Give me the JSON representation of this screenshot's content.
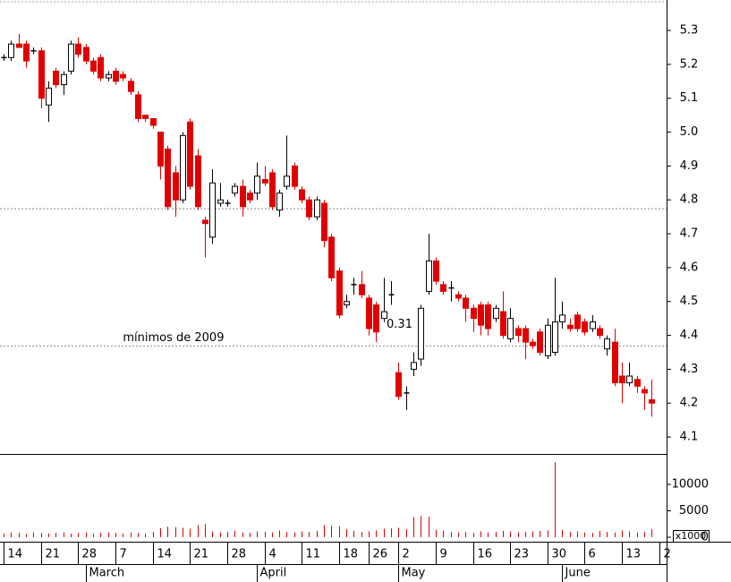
{
  "chart_data": {
    "type": "candlestick",
    "up_color": "#ffffff",
    "down_color": "#e00000",
    "doji_color": "#000000",
    "xlim": [
      -0.5,
      89
    ],
    "ylim": [
      4.05,
      5.39
    ],
    "yticks": [
      4.1,
      4.2,
      4.3,
      4.4,
      4.5,
      4.6,
      4.7,
      4.8,
      4.9,
      {
        "value": 5,
        "label": "5.0"
      },
      5.1,
      5.2,
      5.3
    ],
    "xticks": [
      {
        "value": 0,
        "label": "14"
      },
      {
        "value": 5,
        "label": "21"
      },
      {
        "value": 10,
        "label": "28"
      },
      {
        "value": 15,
        "label": "7"
      },
      {
        "value": 20,
        "label": "14"
      },
      {
        "value": 25,
        "label": "21"
      },
      {
        "value": 30,
        "label": "28"
      },
      {
        "value": 35,
        "label": "4"
      },
      {
        "value": 40,
        "label": "11"
      },
      {
        "value": 45,
        "label": "18"
      },
      {
        "value": 49,
        "label": "26"
      },
      {
        "value": 53,
        "label": "2"
      },
      {
        "value": 58,
        "label": "9"
      },
      {
        "value": 63,
        "label": "16"
      },
      {
        "value": 68,
        "label": "23"
      },
      {
        "value": 73,
        "label": "30"
      },
      {
        "value": 78,
        "label": "6"
      },
      {
        "value": 83,
        "label": "13"
      },
      {
        "value": 88,
        "label": "2"
      }
    ],
    "months": [
      {
        "value": 11,
        "label": "March"
      },
      {
        "value": 34,
        "label": "April"
      },
      {
        "value": 53,
        "label": "May"
      },
      {
        "value": 75,
        "label": "June"
      }
    ],
    "hlines": [
      {
        "value": 4.774,
        "color": "#888888"
      },
      {
        "value": 4.368,
        "color": "#888888"
      }
    ],
    "annotations": [
      {
        "text": "mínimos de 2009",
        "x": 16,
        "y": 4.392,
        "color": "#666666"
      },
      {
        "text": "0.31",
        "x": 51.4,
        "y": 4.432,
        "color": "#3399cc"
      }
    ],
    "open": [
      5.22,
      5.22,
      5.26,
      5.26,
      5.24,
      5.24,
      5.08,
      5.18,
      5.14,
      5.18,
      5.26,
      5.25,
      5.21,
      5.22,
      5.16,
      5.18,
      5.17,
      5.15,
      5.11,
      5.05,
      5.04,
      5.0,
      4.95,
      4.88,
      4.8,
      5.03,
      4.93,
      4.74,
      4.69,
      4.79,
      4.79,
      4.82,
      4.84,
      4.82,
      4.82,
      4.86,
      4.88,
      4.77,
      4.84,
      4.9,
      4.83,
      4.8,
      4.75,
      4.79,
      4.69,
      4.59,
      4.49,
      4.55,
      4.55,
      4.51,
      4.49,
      4.45,
      4.52,
      4.29,
      4.23,
      4.3,
      4.33,
      4.53,
      4.62,
      4.55,
      4.54,
      4.52,
      4.51,
      4.48,
      4.49,
      4.49,
      4.45,
      4.47,
      4.39,
      4.42,
      4.42,
      4.38,
      4.41,
      4.34,
      4.35,
      4.44,
      4.43,
      4.46,
      4.44,
      4.42,
      4.42,
      4.36,
      4.38,
      4.28,
      4.26,
      4.27,
      4.24,
      4.21
    ],
    "high": [
      5.23,
      5.27,
      5.29,
      5.27,
      5.25,
      5.25,
      5.15,
      5.19,
      5.18,
      5.27,
      5.28,
      5.26,
      5.22,
      5.23,
      5.18,
      5.19,
      5.18,
      5.16,
      5.12,
      5.05,
      5.04,
      5.0,
      4.96,
      4.9,
      5.0,
      5.04,
      4.95,
      4.75,
      4.89,
      4.85,
      4.8,
      4.85,
      4.86,
      4.83,
      4.91,
      4.9,
      4.89,
      4.83,
      4.99,
      4.91,
      4.84,
      4.81,
      4.81,
      4.8,
      4.7,
      4.6,
      4.52,
      4.57,
      4.59,
      4.52,
      4.5,
      4.57,
      4.56,
      4.32,
      4.25,
      4.35,
      4.49,
      4.7,
      4.63,
      4.56,
      4.56,
      4.53,
      4.52,
      4.49,
      4.5,
      4.5,
      4.49,
      4.53,
      4.48,
      4.43,
      4.43,
      4.39,
      4.42,
      4.45,
      4.57,
      4.5,
      4.45,
      4.47,
      4.45,
      4.46,
      4.43,
      4.4,
      4.42,
      4.32,
      4.32,
      4.28,
      4.25,
      4.27
    ],
    "low": [
      5.21,
      5.21,
      5.25,
      5.19,
      5.23,
      5.07,
      5.03,
      5.13,
      5.11,
      5.17,
      5.22,
      5.2,
      5.17,
      5.15,
      5.15,
      5.14,
      5.15,
      5.11,
      5.03,
      5.03,
      5.01,
      4.86,
      4.77,
      4.75,
      4.79,
      4.83,
      4.77,
      4.63,
      4.67,
      4.78,
      4.78,
      4.81,
      4.75,
      4.79,
      4.8,
      4.84,
      4.77,
      4.75,
      4.83,
      4.83,
      4.79,
      4.74,
      4.74,
      4.66,
      4.56,
      4.45,
      4.48,
      4.52,
      4.51,
      4.4,
      4.38,
      4.44,
      4.49,
      4.21,
      4.18,
      4.28,
      4.31,
      4.52,
      4.55,
      4.52,
      4.5,
      4.5,
      4.44,
      4.41,
      4.4,
      4.4,
      4.44,
      4.39,
      4.38,
      4.38,
      4.33,
      4.36,
      4.34,
      4.33,
      4.34,
      4.42,
      4.41,
      4.41,
      4.4,
      4.41,
      4.39,
      4.34,
      4.25,
      4.2,
      4.25,
      4.23,
      4.18,
      4.16
    ],
    "close": [
      5.22,
      5.26,
      5.25,
      5.21,
      5.24,
      5.1,
      5.13,
      5.14,
      5.17,
      5.26,
      5.23,
      5.21,
      5.18,
      5.16,
      5.17,
      5.15,
      5.16,
      5.12,
      5.04,
      5.04,
      5.02,
      4.9,
      4.78,
      4.8,
      4.99,
      4.84,
      4.78,
      4.73,
      4.85,
      4.8,
      4.79,
      4.84,
      4.78,
      4.8,
      4.87,
      4.85,
      4.78,
      4.82,
      4.87,
      4.84,
      4.8,
      4.75,
      4.8,
      4.68,
      4.57,
      4.46,
      4.5,
      4.55,
      4.52,
      4.42,
      4.41,
      4.47,
      4.52,
      4.22,
      4.23,
      4.32,
      4.48,
      4.62,
      4.56,
      4.53,
      4.54,
      4.51,
      4.48,
      4.45,
      4.43,
      4.42,
      4.48,
      4.4,
      4.45,
      4.4,
      4.38,
      4.37,
      4.35,
      4.43,
      4.44,
      4.46,
      4.42,
      4.42,
      4.41,
      4.44,
      4.4,
      4.39,
      4.26,
      4.26,
      4.28,
      4.25,
      4.23,
      4.2
    ],
    "volume": {
      "color": "#e00000",
      "unit": "x1000",
      "ylim": [
        -850,
        15600
      ],
      "yticks": [
        0,
        5000,
        10000
      ],
      "values": [
        700,
        900,
        800,
        600,
        900,
        800,
        700,
        800,
        900,
        700,
        800,
        900,
        700,
        800,
        900,
        800,
        700,
        900,
        800,
        700,
        1000,
        1700,
        2000,
        1900,
        1800,
        1600,
        2300,
        2500,
        1100,
        900,
        1000,
        1200,
        900,
        800,
        1100,
        1000,
        900,
        1300,
        1000,
        900,
        1100,
        1000,
        1200,
        2300,
        2200,
        2100,
        1500,
        1200,
        1000,
        1100,
        1300,
        1600,
        1700,
        1800,
        1500,
        3800,
        4000,
        3900,
        1400,
        1200,
        1000,
        900,
        1000,
        800,
        1100,
        900,
        1000,
        1200,
        1100,
        900,
        1000,
        1100,
        1200,
        1300,
        14200,
        1400,
        1000,
        1100,
        900,
        800,
        1200,
        1000,
        900,
        1300,
        1100,
        900,
        1000,
        1500
      ]
    }
  }
}
